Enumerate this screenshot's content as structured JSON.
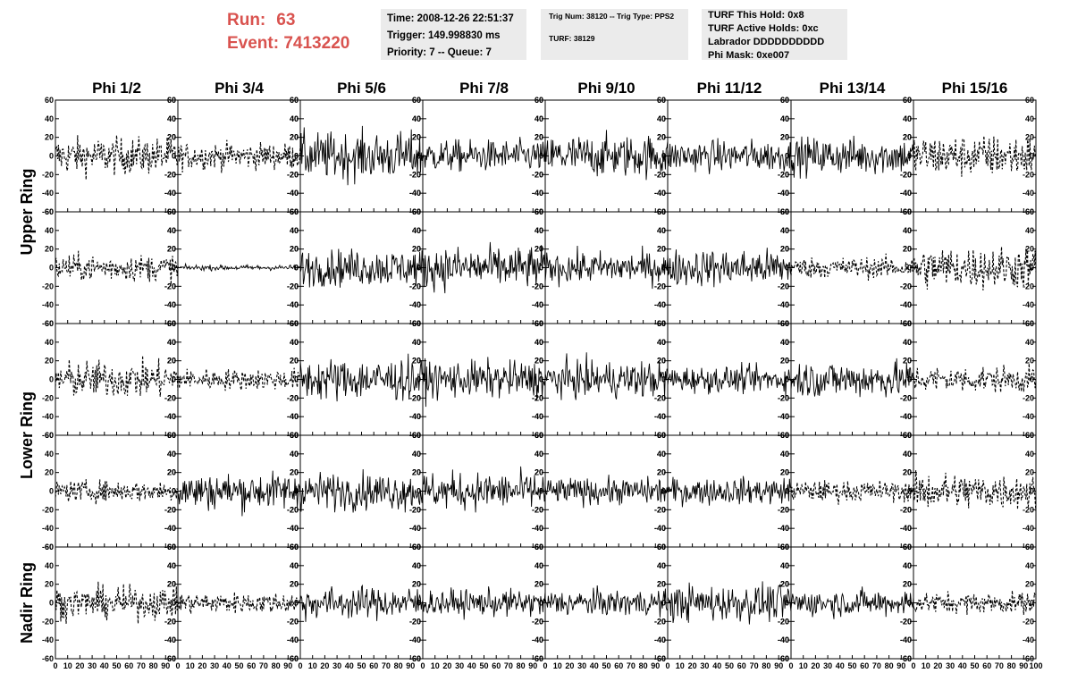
{
  "header": {
    "run_label": "Run:",
    "run_value": "63",
    "event_label": "Event:",
    "event_value": "7413220"
  },
  "info_time": {
    "time": "Time: 2008-12-26 22:51:37",
    "trigger": "Trigger: 149.998830 ms",
    "priority": "Priority: 7 -- Queue: 7"
  },
  "info_trig": {
    "trig": "Trig Num: 38120 -- Trig Type: PPS2",
    "turf": "TURF: 38129"
  },
  "info_turf": {
    "hold": "TURF This Hold: 0x8",
    "active": "TURF Active Holds: 0xc",
    "labrador": "Labrador DDDDDDDDDD",
    "phimask": "Phi Mask: 0xe007"
  },
  "chart_data": {
    "type": "line",
    "columns": [
      "Phi 1/2",
      "Phi 3/4",
      "Phi 5/6",
      "Phi 7/8",
      "Phi 9/10",
      "Phi 11/12",
      "Phi 13/14",
      "Phi 15/16"
    ],
    "row_labels": [
      {
        "text": "Upper Ring"
      },
      {
        "text": "Lower Ring"
      },
      {
        "text": "Nadir Ring"
      }
    ],
    "xlim": [
      0,
      100
    ],
    "ylim": [
      -60,
      60
    ],
    "x_ticks": [
      "0",
      "10",
      "20",
      "30",
      "40",
      "50",
      "60",
      "70",
      "80",
      "90",
      "100"
    ],
    "y_ticks": [
      "-60",
      "-40",
      "-20",
      "0",
      "20",
      "40",
      "60"
    ],
    "line_styles": [
      [
        "dashed",
        "dashed",
        "solid",
        "solid",
        "solid",
        "solid",
        "solid",
        "dashed"
      ],
      [
        "dashed",
        "solid",
        "solid",
        "solid",
        "solid",
        "solid",
        "dashed",
        "dashed"
      ],
      [
        "dashed",
        "dashed",
        "solid",
        "solid",
        "solid",
        "solid",
        "solid",
        "dashed"
      ],
      [
        "dashed",
        "solid",
        "solid",
        "solid",
        "solid",
        "solid",
        "dashed",
        "dashed"
      ],
      [
        "dashed",
        "dashed",
        "solid",
        "solid",
        "solid",
        "solid",
        "solid",
        "dashed"
      ]
    ],
    "amplitudes": [
      [
        14,
        10,
        18,
        12,
        16,
        12,
        14,
        16
      ],
      [
        10,
        2,
        14,
        16,
        12,
        14,
        8,
        16
      ],
      [
        14,
        8,
        16,
        14,
        14,
        10,
        14,
        10
      ],
      [
        8,
        14,
        14,
        14,
        10,
        10,
        8,
        14
      ],
      [
        12,
        8,
        12,
        10,
        10,
        14,
        10,
        8
      ]
    ],
    "trace_color": "#000000"
  }
}
